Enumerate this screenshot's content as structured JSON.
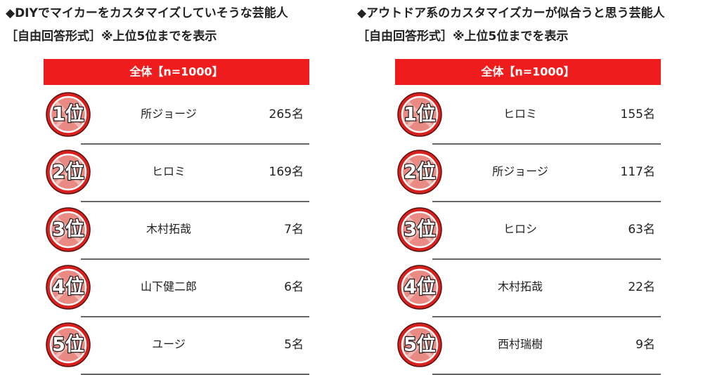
{
  "panels": [
    {
      "title": "◆DIYでマイカーをカスタマイズしていそうな芸能人",
      "subtitle": "［自由回答形式］※上位5位までを表示",
      "header": "全体【n=1000】",
      "rows": [
        {
          "rank": "1位",
          "name": "所ジョージ",
          "count": "265名"
        },
        {
          "rank": "2位",
          "name": "ヒロミ",
          "count": "169名"
        },
        {
          "rank": "3位",
          "name": "木村拓哉",
          "count": "7名"
        },
        {
          "rank": "4位",
          "name": "山下健二郎",
          "count": "6名"
        },
        {
          "rank": "5位",
          "name": "ユージ",
          "count": "5名"
        }
      ]
    },
    {
      "title": "◆アウトドア系のカスタマイズカーが似合うと思う芸能人",
      "subtitle": "［自由回答形式］※上位5位までを表示",
      "header": "全体【n=1000】",
      "rows": [
        {
          "rank": "1位",
          "name": "ヒロミ",
          "count": "155名"
        },
        {
          "rank": "2位",
          "name": "所ジョージ",
          "count": "117名"
        },
        {
          "rank": "3位",
          "name": "ヒロシ",
          "count": "63名"
        },
        {
          "rank": "4位",
          "name": "木村拓哉",
          "count": "22名"
        },
        {
          "rank": "5位",
          "name": "西村瑞樹",
          "count": "9名"
        }
      ]
    }
  ]
}
